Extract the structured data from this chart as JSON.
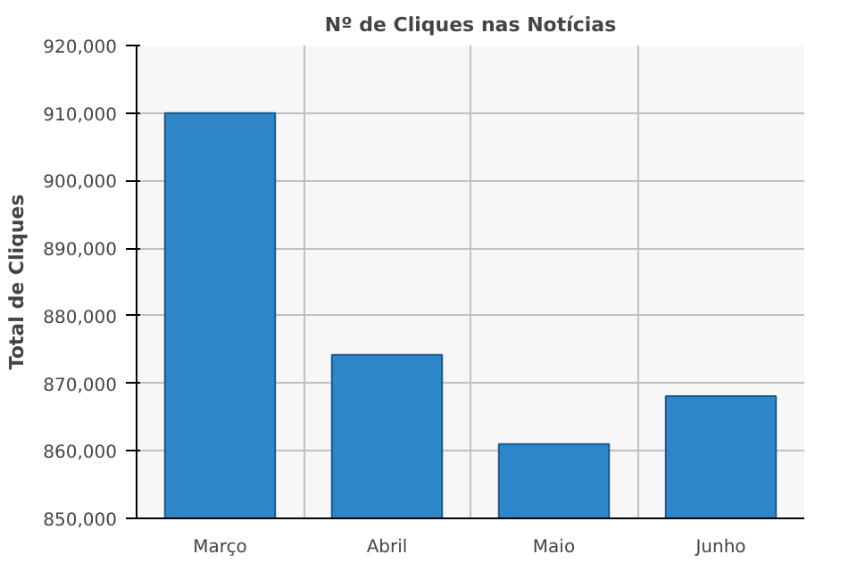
{
  "chart_data": {
    "type": "bar",
    "title": "Nº de Cliques nas Notícias",
    "ylabel": "Total de Cliques",
    "categories": [
      "Março",
      "Abril",
      "Maio",
      "Junho"
    ],
    "values": [
      910000,
      874200,
      861000,
      868100
    ],
    "color": "#2e86c8",
    "ylim": [
      850000,
      920000
    ],
    "yticks": [
      {
        "value": 850000,
        "label": "850,000"
      },
      {
        "value": 860000,
        "label": "860,000"
      },
      {
        "value": 870000,
        "label": "870,000"
      },
      {
        "value": 880000,
        "label": "880,000"
      },
      {
        "value": 890000,
        "label": "890,000"
      },
      {
        "value": 900000,
        "label": "900,000"
      },
      {
        "value": 910000,
        "label": "910,000"
      },
      {
        "value": 920000,
        "label": "920,000"
      }
    ],
    "grid": true
  }
}
